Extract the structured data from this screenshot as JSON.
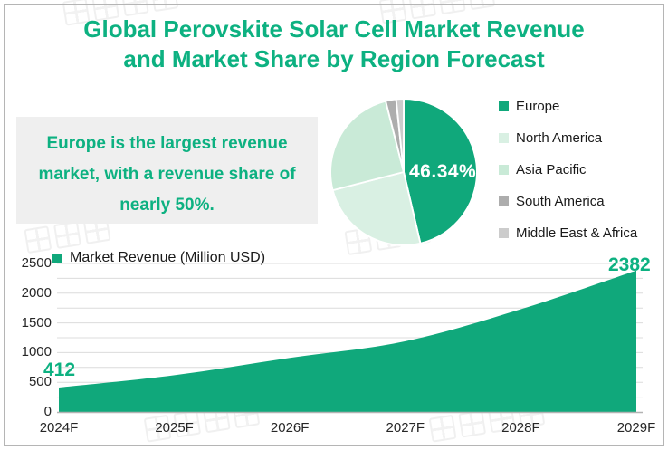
{
  "title": {
    "line1": "Global Perovskite Solar Cell Market Revenue",
    "line2": "and Market Share by Region Forecast"
  },
  "callout": {
    "text": "Europe is the largest revenue market, with a revenue share of nearly 50%."
  },
  "colors": {
    "brand_green": "#0db181",
    "chart_green": "#10a87b",
    "callout_bg": "#efefef",
    "gridline": "#dcdcdc",
    "axis_line": "#b3b3b3",
    "axis_text": "#262626",
    "legend_text": "#1a1a1a",
    "pie_label_text": "#ffffff",
    "frame_border": "#b5b5b5"
  },
  "chart_data": [
    {
      "type": "pie",
      "legend_position": "right",
      "slices": [
        {
          "label": "Europe",
          "value": 46.34,
          "color": "#10a87b",
          "data_label": "46.34%"
        },
        {
          "label": "North America",
          "value": 24.66,
          "color": "#d9f0e3"
        },
        {
          "label": "Asia Pacific",
          "value": 25.04,
          "color": "#c9ead7"
        },
        {
          "label": "South America",
          "value": 2.3,
          "color": "#adadad"
        },
        {
          "label": "Middle East & Africa",
          "value": 1.66,
          "color": "#cccccc"
        }
      ]
    },
    {
      "type": "area",
      "legend": "Market Revenue (Million USD)",
      "categories": [
        "2024F",
        "2025F",
        "2026F",
        "2027F",
        "2028F",
        "2029F"
      ],
      "values": [
        412,
        620,
        910,
        1190,
        1730,
        2382
      ],
      "data_labels": {
        "first": "412",
        "last": "2382"
      },
      "ylim": [
        0,
        2500
      ],
      "ytick_step": 500,
      "gridline_step": 250,
      "grid": true,
      "color": "#10a87b"
    }
  ]
}
